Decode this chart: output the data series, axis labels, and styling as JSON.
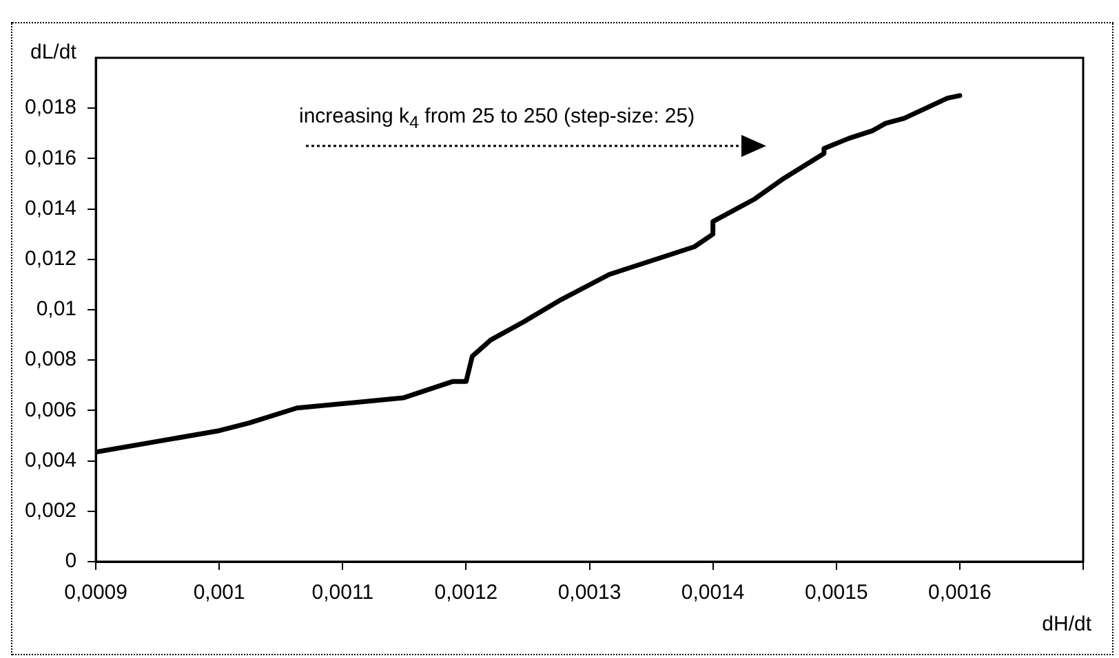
{
  "chart_data": {
    "type": "line",
    "xlabel": "dH/dt",
    "ylabel": "dL/dt",
    "annotations": [
      "increasing k$_{4}$ from 25 to 250 (step-size: 25)"
    ],
    "series": [
      {
        "color": "#000000",
        "x": [
          0.0009,
          0.001,
          0.001024,
          0.001063,
          0.001149,
          0.001189,
          0.0012,
          0.001205,
          0.00122,
          0.001246,
          0.001277,
          0.001316,
          0.001385,
          0.0014,
          0.0014,
          0.001434,
          0.001457,
          0.00149,
          0.00149,
          0.00151,
          0.001529,
          0.00154,
          0.001555,
          0.00159,
          0.0016
        ],
        "values": [
          0.00435,
          0.0052,
          0.0055,
          0.0061,
          0.0065,
          0.00715,
          0.00715,
          0.00815,
          0.0088,
          0.0095,
          0.0104,
          0.0114,
          0.0125,
          0.013,
          0.0135,
          0.0144,
          0.0152,
          0.0162,
          0.0164,
          0.0168,
          0.0171,
          0.0174,
          0.0176,
          0.0184,
          0.0185
        ]
      }
    ],
    "xlim": [
      0.0009,
      0.0017
    ],
    "xticks": [
      {
        "value": 0.0009,
        "label": "0,0009"
      },
      {
        "value": 0.001,
        "label": "0,001"
      },
      {
        "value": 0.0011,
        "label": "0,0011"
      },
      {
        "value": 0.0012,
        "label": "0,0012"
      },
      {
        "value": 0.0013,
        "label": "0,0013"
      },
      {
        "value": 0.0014,
        "label": "0,0014"
      },
      {
        "value": 0.0015,
        "label": "0,0015"
      },
      {
        "value": 0.0016,
        "label": "0,0016"
      },
      {
        "value": 0.0017,
        "label": null
      }
    ],
    "ylim": [
      0,
      0.02
    ],
    "yticks": [
      0,
      {
        "value": 0.002,
        "label": "0,002"
      },
      {
        "value": 0.004,
        "label": "0,004"
      },
      {
        "value": 0.006,
        "label": "0,006"
      },
      {
        "value": 0.008,
        "label": "0,008"
      },
      {
        "value": 0.01,
        "label": "0,01"
      },
      {
        "value": 0.012,
        "label": "0,012"
      },
      {
        "value": 0.014,
        "label": "0,014"
      },
      {
        "value": 0.016,
        "label": "0,016"
      },
      {
        "value": 0.018,
        "label": "0,018"
      }
    ],
    "grid": false,
    "legend": false,
    "marker": "none",
    "line_style": "solid"
  }
}
